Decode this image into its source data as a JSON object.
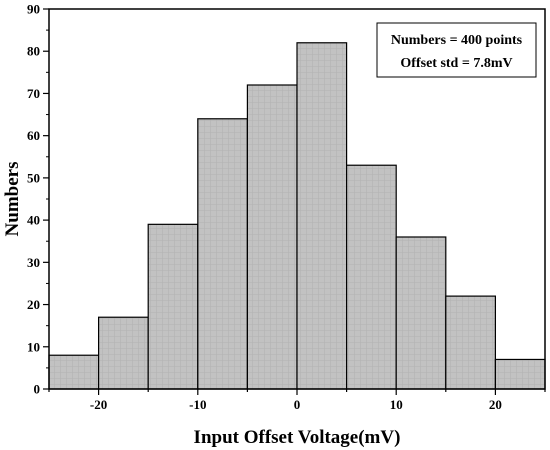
{
  "chart_data": {
    "type": "bar",
    "subtype": "histogram",
    "xlabel": "Input Offset Voltage(mV)",
    "ylabel": "Numbers",
    "xlim": [
      -25,
      25
    ],
    "ylim": [
      0,
      90
    ],
    "bin_width": 5,
    "bins": [
      {
        "start": -25,
        "end": -20,
        "value": 8
      },
      {
        "start": -20,
        "end": -15,
        "value": 17
      },
      {
        "start": -15,
        "end": -10,
        "value": 39
      },
      {
        "start": -10,
        "end": -5,
        "value": 64
      },
      {
        "start": -5,
        "end": 0,
        "value": 72
      },
      {
        "start": 0,
        "end": 5,
        "value": 82
      },
      {
        "start": 5,
        "end": 10,
        "value": 53
      },
      {
        "start": 10,
        "end": 15,
        "value": 36
      },
      {
        "start": 15,
        "end": 20,
        "value": 22
      },
      {
        "start": 20,
        "end": 25,
        "value": 7
      }
    ],
    "x_ticks": [
      {
        "value": -20,
        "label": "-20"
      },
      {
        "value": -10,
        "label": "-10"
      },
      {
        "value": 0,
        "label": "0"
      },
      {
        "value": 10,
        "label": "10"
      },
      {
        "value": 20,
        "label": "20"
      }
    ],
    "y_ticks": [
      {
        "value": 0,
        "label": "0"
      },
      {
        "value": 10,
        "label": "10"
      },
      {
        "value": 20,
        "label": "20"
      },
      {
        "value": 30,
        "label": "30"
      },
      {
        "value": 40,
        "label": "40"
      },
      {
        "value": 50,
        "label": "50"
      },
      {
        "value": 60,
        "label": "60"
      },
      {
        "value": 70,
        "label": "70"
      },
      {
        "value": 80,
        "label": "80"
      },
      {
        "value": 90,
        "label": "90"
      }
    ],
    "annotation": {
      "lines": [
        "Numbers = 400 points",
        "Offset std = 7.8mV"
      ],
      "position": "top-right"
    },
    "bar_color": "#c0c0c0",
    "bar_edge_color": "#000000",
    "grid": false,
    "legend": false
  }
}
